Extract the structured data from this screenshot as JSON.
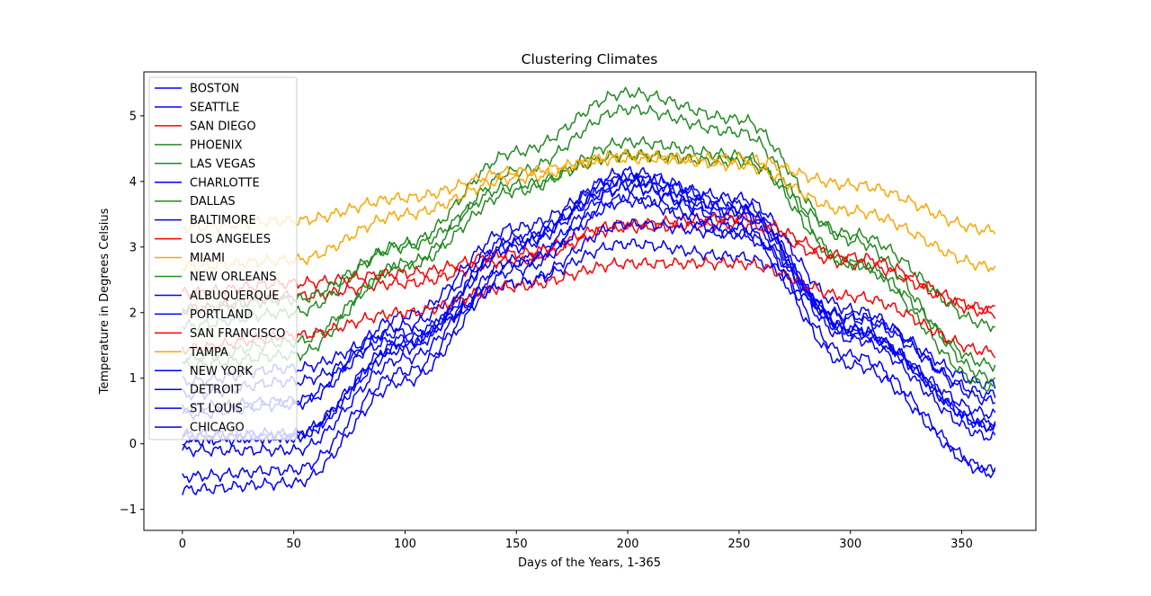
{
  "chart_data": {
    "type": "line",
    "title": "Clustering Climates",
    "xlabel": "Days of the Years, 1-365",
    "ylabel": "Temperature in Degrees Celsius",
    "xlim": [
      -17.3,
      383.3
    ],
    "ylim": [
      -1.32,
      5.67
    ],
    "xticks": [
      0,
      50,
      100,
      150,
      200,
      250,
      300,
      350
    ],
    "yticks": [
      -1,
      0,
      1,
      2,
      3,
      4,
      5
    ],
    "grid": false,
    "legend_position": "upper-left",
    "colors": {
      "cluster_blue": "#0000ff",
      "cluster_red": "#ff0000",
      "cluster_green": "#228b22",
      "cluster_orange": "#ffa500"
    },
    "series": [
      {
        "name": "BOSTON",
        "color": "#0000ff",
        "x": [
          0,
          50,
          100,
          150,
          200,
          250,
          300,
          365
        ],
        "y": [
          -0.1,
          -0.1,
          1.3,
          2.8,
          3.9,
          3.4,
          1.6,
          0.1
        ]
      },
      {
        "name": "SEATTLE",
        "color": "#0000ff",
        "x": [
          0,
          50,
          100,
          150,
          200,
          250,
          300,
          365
        ],
        "y": [
          0.95,
          1.15,
          1.7,
          2.45,
          3.05,
          2.85,
          1.95,
          0.9
        ]
      },
      {
        "name": "SAN DIEGO",
        "color": "#ff0000",
        "x": [
          0,
          50,
          100,
          150,
          200,
          250,
          300,
          365
        ],
        "y": [
          2.05,
          2.25,
          2.45,
          2.8,
          3.3,
          3.35,
          2.75,
          2.0
        ]
      },
      {
        "name": "PHOENIX",
        "color": "#228b22",
        "x": [
          0,
          50,
          100,
          150,
          200,
          250,
          300,
          365
        ],
        "y": [
          1.8,
          2.0,
          3.05,
          4.45,
          5.35,
          4.95,
          3.1,
          1.0
        ]
      },
      {
        "name": "LAS VEGAS",
        "color": "#228b22",
        "x": [
          0,
          50,
          100,
          150,
          200,
          250,
          300,
          365
        ],
        "y": [
          1.2,
          1.35,
          2.75,
          4.15,
          5.1,
          4.75,
          2.75,
          0.85
        ]
      },
      {
        "name": "CHARLOTTE",
        "color": "#0000ff",
        "x": [
          0,
          50,
          100,
          150,
          200,
          250,
          300,
          365
        ],
        "y": [
          0.55,
          0.65,
          1.95,
          3.3,
          4.05,
          3.75,
          2.05,
          0.65
        ]
      },
      {
        "name": "DALLAS",
        "color": "#228b22",
        "x": [
          0,
          50,
          100,
          150,
          200,
          250,
          300,
          365
        ],
        "y": [
          1.3,
          1.55,
          2.7,
          3.85,
          4.6,
          4.4,
          2.75,
          1.2
        ]
      },
      {
        "name": "BALTIMORE",
        "color": "#0000ff",
        "x": [
          0,
          50,
          100,
          150,
          200,
          250,
          300,
          365
        ],
        "y": [
          0.15,
          0.15,
          1.55,
          3.05,
          4.05,
          3.55,
          1.75,
          0.25
        ]
      },
      {
        "name": "LOS ANGELES",
        "color": "#ff0000",
        "x": [
          0,
          50,
          100,
          150,
          200,
          250,
          300,
          365
        ],
        "y": [
          2.3,
          2.45,
          2.6,
          2.9,
          3.35,
          3.45,
          2.85,
          2.05
        ]
      },
      {
        "name": "MIAMI",
        "color": "#ffa500",
        "x": [
          0,
          50,
          100,
          150,
          200,
          250,
          300,
          365
        ],
        "y": [
          3.3,
          3.4,
          3.75,
          4.15,
          4.35,
          4.35,
          3.95,
          3.25
        ]
      },
      {
        "name": "NEW ORLEANS",
        "color": "#228b22",
        "x": [
          0,
          50,
          100,
          150,
          200,
          250,
          300,
          365
        ],
        "y": [
          2.05,
          2.2,
          3.0,
          3.95,
          4.4,
          4.3,
          3.2,
          1.8
        ]
      },
      {
        "name": "ALBUQUERQUE",
        "color": "#0000ff",
        "x": [
          0,
          50,
          100,
          150,
          200,
          250,
          300,
          365
        ],
        "y": [
          0.45,
          0.6,
          1.8,
          3.15,
          3.9,
          3.5,
          1.7,
          0.45
        ]
      },
      {
        "name": "PORTLAND",
        "color": "#0000ff",
        "x": [
          0,
          50,
          100,
          150,
          200,
          250,
          300,
          365
        ],
        "y": [
          0.75,
          0.95,
          1.6,
          2.45,
          3.35,
          3.2,
          1.9,
          0.75
        ]
      },
      {
        "name": "SAN FRANCISCO",
        "color": "#ff0000",
        "x": [
          0,
          50,
          100,
          150,
          200,
          250,
          300,
          365
        ],
        "y": [
          1.45,
          1.65,
          2.0,
          2.4,
          2.75,
          2.75,
          2.25,
          1.4
        ]
      },
      {
        "name": "TAMPA",
        "color": "#ffa500",
        "x": [
          0,
          50,
          100,
          150,
          200,
          250,
          300,
          365
        ],
        "y": [
          2.7,
          2.8,
          3.5,
          4.05,
          4.4,
          4.25,
          3.55,
          2.7
        ]
      },
      {
        "name": "NEW YORK",
        "color": "#0000ff",
        "x": [
          0,
          50,
          100,
          150,
          200,
          250,
          300,
          365
        ],
        "y": [
          0.1,
          0.1,
          1.45,
          3.0,
          4.0,
          3.6,
          1.75,
          0.25
        ]
      },
      {
        "name": "DETROIT",
        "color": "#0000ff",
        "x": [
          0,
          50,
          100,
          150,
          200,
          250,
          300,
          365
        ],
        "y": [
          -0.5,
          -0.4,
          1.1,
          2.75,
          3.75,
          3.3,
          1.35,
          -0.4
        ]
      },
      {
        "name": "ST LOUIS",
        "color": "#0000ff",
        "x": [
          0,
          50,
          100,
          150,
          200,
          250,
          300,
          365
        ],
        "y": [
          0.05,
          0.1,
          1.5,
          3.1,
          4.15,
          3.65,
          1.7,
          0.3
        ]
      },
      {
        "name": "CHICAGO",
        "color": "#0000ff",
        "x": [
          0,
          50,
          100,
          150,
          200,
          250,
          300,
          365
        ],
        "y": [
          -0.7,
          -0.6,
          0.95,
          2.65,
          3.7,
          3.2,
          1.2,
          -0.45
        ]
      }
    ]
  }
}
